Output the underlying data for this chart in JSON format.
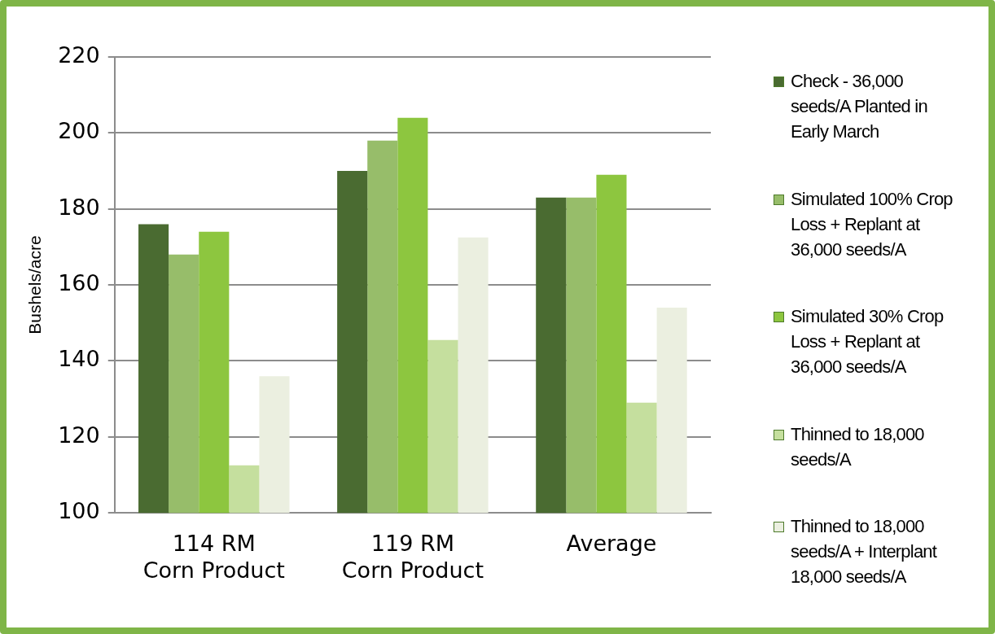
{
  "chart_data": {
    "type": "bar",
    "ylabel": "Bushels/acre",
    "categories": [
      "114 RM Corn Product",
      "119 RM Corn Product",
      "Average"
    ],
    "series": [
      {
        "name": "Check - 36,000 seeds/A Planted in Early March",
        "color": "#4a6b31",
        "values": [
          176,
          190,
          183
        ]
      },
      {
        "name": "Simulated 100% Crop Loss + Replant at 36,000 seeds/A",
        "color": "#97bd6a",
        "values": [
          168,
          198,
          183
        ]
      },
      {
        "name": "Simulated 30% Crop Loss + Replant at 36,000 seeds/A",
        "color": "#8dc63f",
        "values": [
          174,
          204,
          189
        ]
      },
      {
        "name": "Thinned to 18,000 seeds/A",
        "color": "#c5df9e",
        "values": [
          112.5,
          145.5,
          129
        ]
      },
      {
        "name": "Thinned to 18,000 seeds/A + Interplant 18,000 seeds/A",
        "color": "#ebefe0",
        "values": [
          136,
          172.5,
          154
        ]
      }
    ],
    "ylim": [
      100,
      220
    ],
    "yticks": [
      100,
      120,
      140,
      160,
      180,
      200,
      220
    ],
    "grid": "y",
    "legend": "right"
  }
}
